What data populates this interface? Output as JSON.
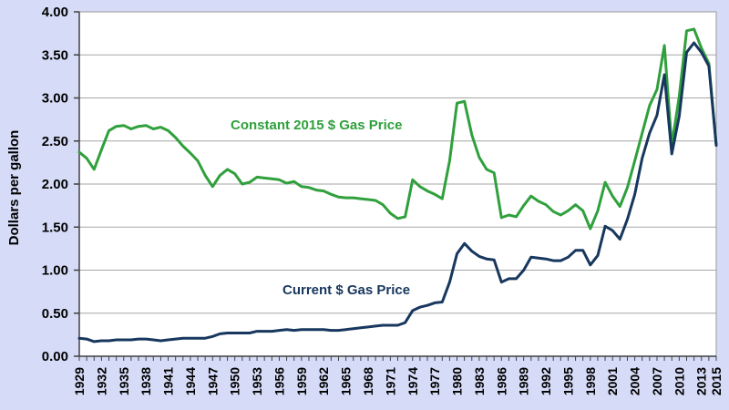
{
  "colors": {
    "background": "#D6DCF7",
    "plot_background": "#FFFFFF",
    "plot_border": "#999999",
    "axis_line": "#404040",
    "gridline": "#A6A6A6",
    "tick_label": "#000000",
    "constant_series": "#2FA03C",
    "current_series": "#17375E"
  },
  "axis": {
    "ylabel": "Dollars per gallon"
  },
  "annotations": {
    "constant_label": "Constant 2015 $ Gas Price",
    "current_label": "Current $ Gas Price"
  },
  "chart_data": {
    "type": "line",
    "title": "",
    "xlabel": "",
    "ylabel": "Dollars per gallon",
    "x_start": 1929,
    "x_end": 2015,
    "ylim": [
      0,
      4
    ],
    "y_tick_labels": [
      "0.00",
      "0.50",
      "1.00",
      "1.50",
      "2.00",
      "2.50",
      "3.00",
      "3.50",
      "4.00"
    ],
    "x_tick_labels": [
      "1929",
      "1932",
      "1935",
      "1938",
      "1941",
      "1944",
      "1947",
      "1950",
      "1953",
      "1956",
      "1959",
      "1962",
      "1965",
      "1968",
      "1971",
      "1974",
      "1977",
      "1980",
      "1983",
      "1986",
      "1989",
      "1992",
      "1995",
      "1998",
      "2001",
      "2004",
      "2007",
      "2010",
      "2013",
      "2015"
    ],
    "grid": "horizontal",
    "legend_position": "inline-text-annotations",
    "series": [
      {
        "name": "Constant 2015 $ Gas Price",
        "color": "#2FA03C",
        "values": [
          2.37,
          2.3,
          2.17,
          2.4,
          2.62,
          2.67,
          2.68,
          2.64,
          2.67,
          2.68,
          2.64,
          2.66,
          2.62,
          2.54,
          2.44,
          2.36,
          2.27,
          2.1,
          1.97,
          2.1,
          2.17,
          2.12,
          2.0,
          2.02,
          2.08,
          2.07,
          2.06,
          2.05,
          2.01,
          2.03,
          1.97,
          1.96,
          1.93,
          1.92,
          1.88,
          1.85,
          1.84,
          1.84,
          1.83,
          1.82,
          1.81,
          1.76,
          1.66,
          1.6,
          1.62,
          2.05,
          1.97,
          1.92,
          1.88,
          1.83,
          2.27,
          2.94,
          2.96,
          2.57,
          2.31,
          2.17,
          2.13,
          1.61,
          1.64,
          1.62,
          1.75,
          1.86,
          1.8,
          1.76,
          1.68,
          1.64,
          1.69,
          1.76,
          1.69,
          1.48,
          1.69,
          2.02,
          1.86,
          1.74,
          1.96,
          2.27,
          2.59,
          2.91,
          3.1,
          3.61,
          2.45,
          3.02,
          3.78,
          3.8,
          3.58,
          3.4,
          2.45
        ]
      },
      {
        "name": "Current $ Gas Price",
        "color": "#17375E",
        "values": [
          0.21,
          0.2,
          0.17,
          0.18,
          0.18,
          0.19,
          0.19,
          0.19,
          0.2,
          0.2,
          0.19,
          0.18,
          0.19,
          0.2,
          0.21,
          0.21,
          0.21,
          0.21,
          0.23,
          0.26,
          0.27,
          0.27,
          0.27,
          0.27,
          0.29,
          0.29,
          0.29,
          0.3,
          0.31,
          0.3,
          0.31,
          0.31,
          0.31,
          0.31,
          0.3,
          0.3,
          0.31,
          0.32,
          0.33,
          0.34,
          0.35,
          0.36,
          0.36,
          0.36,
          0.39,
          0.53,
          0.57,
          0.59,
          0.62,
          0.63,
          0.86,
          1.19,
          1.31,
          1.22,
          1.16,
          1.13,
          1.12,
          0.86,
          0.9,
          0.9,
          1.0,
          1.15,
          1.14,
          1.13,
          1.11,
          1.11,
          1.15,
          1.23,
          1.23,
          1.06,
          1.17,
          1.51,
          1.46,
          1.36,
          1.59,
          1.88,
          2.3,
          2.59,
          2.8,
          3.27,
          2.35,
          2.79,
          3.53,
          3.64,
          3.53,
          3.37,
          2.45
        ]
      }
    ]
  }
}
